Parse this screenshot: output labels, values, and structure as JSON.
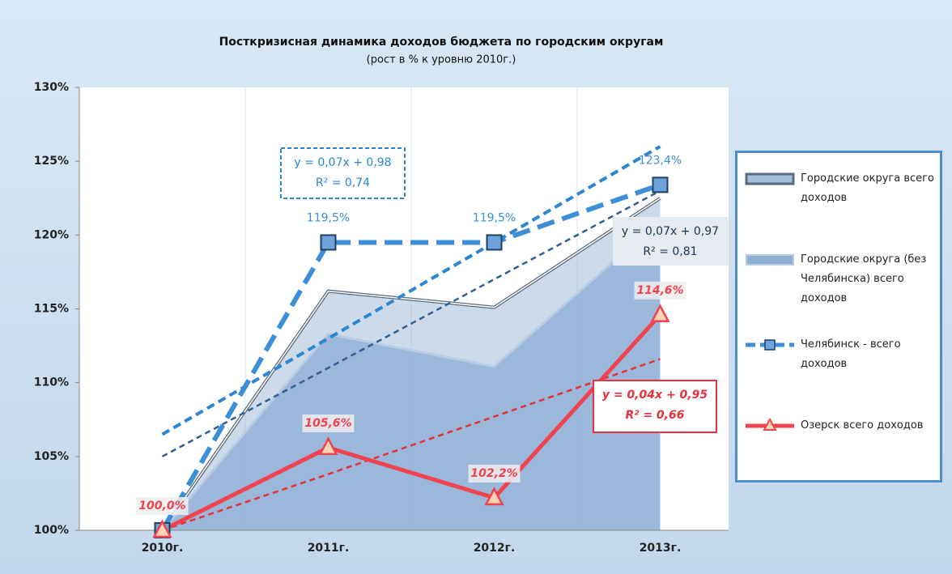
{
  "chart_data": {
    "type": "line",
    "title": "Посткризисная динамика доходов бюджета по городским округам",
    "subtitle": "(рост в % к уровню 2010г.)",
    "categories": [
      "2010г.",
      "2011г.",
      "2012г.",
      "2013г."
    ],
    "ylim": [
      100,
      130
    ],
    "yticks": [
      {
        "value": 100,
        "label": "100%"
      },
      {
        "value": 105,
        "label": "105%"
      },
      {
        "value": 110,
        "label": "110%"
      },
      {
        "value": 115,
        "label": "115%"
      },
      {
        "value": 120,
        "label": "120%"
      },
      {
        "value": 125,
        "label": "125%"
      },
      {
        "value": 130,
        "label": "130%"
      }
    ],
    "legend": "right",
    "series": [
      {
        "name": "Городские округа всего доходов",
        "style": "area",
        "color": "#a4bcd9",
        "stroke": "#5a6a7e",
        "values": [
          100,
          116.2,
          115.1,
          122.5
        ]
      },
      {
        "name": "Городские округа (без Челябинска) всего доходов",
        "style": "area",
        "color": "#8eaed4",
        "stroke": "#b8cce4",
        "values": [
          100,
          113.3,
          111.1,
          121.0
        ]
      },
      {
        "name": "Челябинск - всего доходов",
        "style": "dashed",
        "color": "#3c8fd6",
        "values": [
          100,
          119.5,
          119.5,
          123.4
        ],
        "value_labels": [
          null,
          "119,5%",
          "119,5%",
          "123,4%"
        ]
      },
      {
        "name": "Озерск всего доходов",
        "style": "solid",
        "color": "#f0424f",
        "values": [
          100,
          105.6,
          102.2,
          114.6
        ],
        "value_labels": [
          "100,0%",
          "105,6%",
          "102,2%",
          "114,6%"
        ]
      }
    ],
    "trendlines": [
      {
        "color": "#2e86d0",
        "values": [
          106.5,
          113,
          119.5,
          126
        ],
        "equation": [
          "y = 0,07x + 0,98",
          "R² = 0,74"
        ]
      },
      {
        "color": "#2f5f93",
        "values": [
          105,
          111,
          117,
          123
        ],
        "equation": [
          "y = 0,07x + 0,97",
          "R² = 0,81"
        ]
      },
      {
        "color": "#e8303c",
        "values": [
          100,
          103.8,
          107.7,
          111.6
        ],
        "equation": [
          "y = 0,04x + 0,95",
          "R² = 0,66"
        ]
      }
    ]
  }
}
